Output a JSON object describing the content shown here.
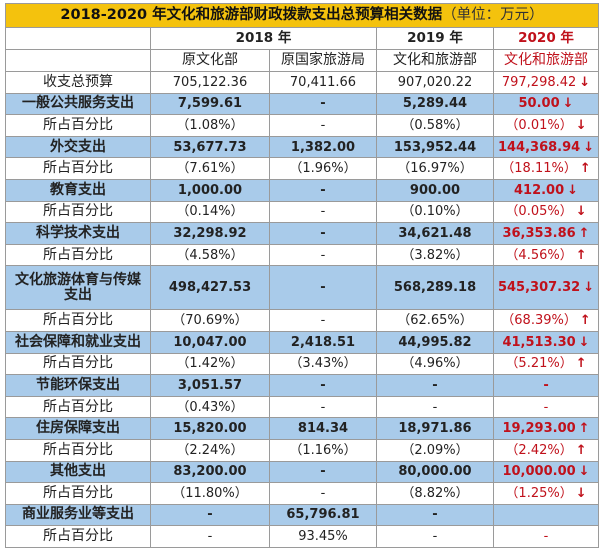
{
  "title": "2018-2020 年文化和旅游部财政拨款支出总预算相关数据",
  "unit": "（单位：万元）",
  "years": [
    "2018 年",
    "2019 年",
    "2020 年"
  ],
  "departments": [
    "原文化部",
    "原国家旅游局",
    "文化和旅游部",
    "文化和旅游部"
  ],
  "colors": {
    "header": "#f4c20d",
    "highlight_row": "#a9cbea",
    "red": "#c0111b"
  },
  "rows": [
    {
      "label": "收支总预算",
      "style": "plain",
      "values": [
        "705,122.36",
        "70,411.66",
        "907,020.22",
        "797,298.42"
      ],
      "trend": "↓"
    },
    {
      "label": "一般公共服务支出",
      "style": "blue",
      "values": [
        "7,599.61",
        "-",
        "5,289.44",
        "50.00"
      ],
      "trend": "↓"
    },
    {
      "label": "所占百分比",
      "style": "plain",
      "values": [
        "（1.08%）",
        "-",
        "（0.58%）",
        "（0.01%）"
      ],
      "trend": "↓"
    },
    {
      "label": "外交支出",
      "style": "blue",
      "values": [
        "53,677.73",
        "1,382.00",
        "153,952.44",
        "144,368.94"
      ],
      "trend": "↓"
    },
    {
      "label": "所占百分比",
      "style": "plain",
      "values": [
        "（7.61%）",
        "（1.96%）",
        "（16.97%）",
        "（18.11%）"
      ],
      "trend": "↑"
    },
    {
      "label": "教育支出",
      "style": "blue",
      "values": [
        "1,000.00",
        "-",
        "900.00",
        "412.00"
      ],
      "trend": "↓"
    },
    {
      "label": "所占百分比",
      "style": "plain",
      "values": [
        "（0.14%）",
        "-",
        "（0.10%）",
        "（0.05%）"
      ],
      "trend": "↓"
    },
    {
      "label": "科学技术支出",
      "style": "blue",
      "values": [
        "32,298.92",
        "-",
        "34,621.48",
        "36,353.86"
      ],
      "trend": "↑"
    },
    {
      "label": "所占百分比",
      "style": "plain",
      "values": [
        "（4.58%）",
        "-",
        "（3.82%）",
        "（4.56%）"
      ],
      "trend": "↑"
    },
    {
      "label": "文化旅游体育与传媒支出",
      "style": "blue",
      "double": true,
      "values": [
        "498,427.53",
        "-",
        "568,289.18",
        "545,307.32"
      ],
      "trend": "↓"
    },
    {
      "label": "所占百分比",
      "style": "plain",
      "values": [
        "（70.69%）",
        "-",
        "（62.65%）",
        "（68.39%）"
      ],
      "trend": "↑"
    },
    {
      "label": "社会保障和就业支出",
      "style": "blue",
      "values": [
        "10,047.00",
        "2,418.51",
        "44,995.82",
        "41,513.30"
      ],
      "trend": "↓"
    },
    {
      "label": "所占百分比",
      "style": "plain",
      "values": [
        "（1.42%）",
        "（3.43%）",
        "（4.96%）",
        "（5.21%）"
      ],
      "trend": "↑"
    },
    {
      "label": "节能环保支出",
      "style": "blue",
      "values": [
        "3,051.57",
        "-",
        "-",
        "-"
      ],
      "trend": ""
    },
    {
      "label": "所占百分比",
      "style": "plain",
      "values": [
        "（0.43%）",
        "-",
        "-",
        "-"
      ],
      "trend": ""
    },
    {
      "label": "住房保障支出",
      "style": "blue",
      "values": [
        "15,820.00",
        "814.34",
        "18,971.86",
        "19,293.00"
      ],
      "trend": "↑"
    },
    {
      "label": "所占百分比",
      "style": "plain",
      "values": [
        "（2.24%）",
        "（1.16%）",
        "（2.09%）",
        "（2.42%）"
      ],
      "trend": "↑"
    },
    {
      "label": "其他支出",
      "style": "blue",
      "values": [
        "83,200.00",
        "-",
        "80,000.00",
        "10,000.00"
      ],
      "trend": "↓"
    },
    {
      "label": "所占百分比",
      "style": "plain",
      "values": [
        "（11.80%）",
        "-",
        "（8.82%）",
        "（1.25%）"
      ],
      "trend": "↓"
    },
    {
      "label": "商业服务业等支出",
      "style": "blue",
      "values": [
        "-",
        "65,796.81",
        "-",
        ""
      ],
      "trend": ""
    },
    {
      "label": "所占百分比",
      "style": "plain",
      "values": [
        "-",
        "93.45%",
        "-",
        "-"
      ],
      "trend": ""
    }
  ]
}
